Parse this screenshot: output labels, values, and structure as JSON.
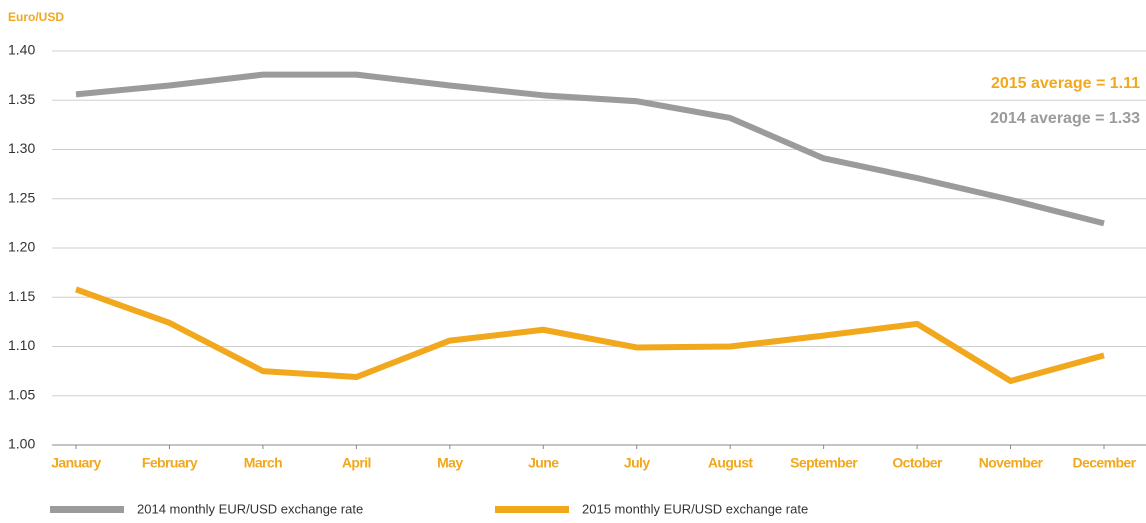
{
  "chart_data": {
    "type": "line",
    "y_label": "Euro/USD",
    "categories": [
      "January",
      "February",
      "March",
      "April",
      "May",
      "June",
      "July",
      "August",
      "September",
      "October",
      "November",
      "December"
    ],
    "series": [
      {
        "name": "2014 monthly EUR/USD exchange rate",
        "color": "#9b9b9b",
        "values": [
          1.356,
          1.365,
          1.376,
          1.376,
          1.365,
          1.355,
          1.349,
          1.332,
          1.291,
          1.271,
          1.249,
          1.225
        ]
      },
      {
        "name": "2015 monthly EUR/USD exchange rate",
        "color": "#f2a81d",
        "values": [
          1.158,
          1.124,
          1.075,
          1.069,
          1.106,
          1.117,
          1.099,
          1.1,
          1.111,
          1.123,
          1.065,
          1.091
        ]
      }
    ],
    "annotations": [
      {
        "text": "2015 average = 1.11",
        "color": "#f2a81d"
      },
      {
        "text": "2014 average = 1.33",
        "color": "#9b9b9b"
      }
    ],
    "ylim": [
      1.0,
      1.4
    ],
    "yticks": [
      {
        "value": 1.0,
        "label": "1.00"
      },
      1.05,
      {
        "value": 1.1,
        "label": "1.10"
      },
      1.15,
      {
        "value": 1.2,
        "label": "1.20"
      },
      1.25,
      {
        "value": 1.3,
        "label": "1.30"
      },
      1.35,
      {
        "value": 1.4,
        "label": "1.40"
      }
    ],
    "grid": true,
    "category_color": "#f2a81d",
    "legend": "bottom"
  }
}
